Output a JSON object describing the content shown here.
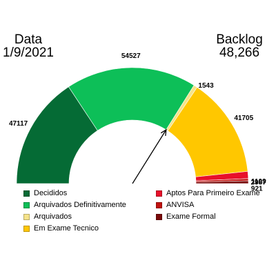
{
  "header": {
    "left_title": "Data",
    "left_value": "1/9/2021",
    "right_title": "Backlog",
    "right_value": "48,266"
  },
  "chart_data": {
    "type": "gauge",
    "segments": [
      {
        "name": "Decididos",
        "value": 47117,
        "label": "47117",
        "color": "#056b35"
      },
      {
        "name": "Arquivados Definitivamente",
        "value": 54527,
        "label": "54527",
        "color": "#0dbf58"
      },
      {
        "name": "Arquivados",
        "value": 1543,
        "label": "1543",
        "color": "#f5e38a"
      },
      {
        "name": "Em Exame Tecnico",
        "value": 41705,
        "label": "41705",
        "color": "#ffc700"
      },
      {
        "name": "Aptos Para Primeiro Exame",
        "value": 2987,
        "label": "2987",
        "color": "#e8102a"
      },
      {
        "name": "ANVISA",
        "value": 921,
        "label": "921",
        "color": "#c0120f"
      },
      {
        "name": "Exame Formal",
        "value": 1109,
        "label": "1109",
        "color": "#7a0a0a"
      }
    ],
    "needle_value": 101644,
    "legend_placement": "bottom"
  }
}
